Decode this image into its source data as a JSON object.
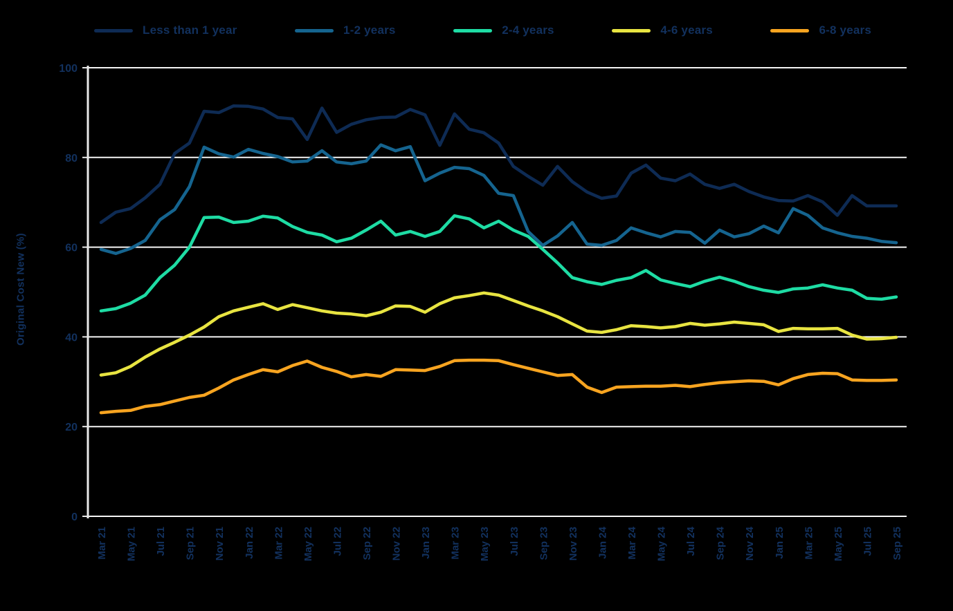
{
  "colors": {
    "background": "#000000",
    "text": "#12315e",
    "gridline": "#f5f5f5",
    "axis": "#e8e8e8"
  },
  "chart_data": {
    "type": "line",
    "title": "",
    "xlabel": "",
    "ylabel": "Original Cost New (%)",
    "ylim": [
      0,
      100
    ],
    "y_ticks": [
      0,
      20,
      40,
      60,
      80,
      100
    ],
    "grid": "horizontal",
    "legend_position": "top",
    "x": [
      "Mar 21",
      "Apr 21",
      "May 21",
      "Jun 21",
      "Jul 21",
      "Aug 21",
      "Sep 21",
      "Oct 21",
      "Nov 21",
      "Dec 21",
      "Jan 22",
      "Feb 22",
      "Mar 22",
      "Apr 22",
      "May 22",
      "Jun 22",
      "Jul 22",
      "Aug 22",
      "Sep 22",
      "Oct 22",
      "Nov 22",
      "Dec 22",
      "Jan 23",
      "Feb 23",
      "Mar 23",
      "Apr 23",
      "May 23",
      "Jun 23",
      "Jul 23",
      "Aug 23",
      "Sep 23",
      "Oct 23",
      "Nov 23",
      "Dec 23",
      "Jan 24",
      "Feb 24",
      "Mar 24",
      "Apr 24",
      "May 24",
      "Jun 24",
      "Jul 24",
      "Aug 24",
      "Sep 24",
      "Oct 24",
      "Nov 24",
      "Dec 24",
      "Jan 25",
      "Feb 25",
      "Mar 25",
      "Apr 25",
      "May 25",
      "Jun 25",
      "Jul 25",
      "Aug 25",
      "Sep 25"
    ],
    "x_tick_labels": [
      "Mar 21",
      "May 21",
      "Jul 21",
      "Sep 21",
      "Nov 21",
      "Jan 22",
      "Mar 22",
      "May 22",
      "Jul 22",
      "Sep 22",
      "Nov 22",
      "Jan 23",
      "Mar 23",
      "May 23",
      "Jul 23",
      "Sep 23",
      "Nov 23",
      "Jan 24",
      "Mar 24",
      "May 24",
      "Jul 24",
      "Sep 24",
      "Nov 24",
      "Jan 25",
      "Mar 25",
      "May 25",
      "Jul 25",
      "Sep 25"
    ],
    "series": [
      {
        "name": "Less than 1 year",
        "color": "#0e2b54",
        "values": [
          65.5,
          67.8,
          68.6,
          71.0,
          74.0,
          80.9,
          83.2,
          90.3,
          90.0,
          91.5,
          91.4,
          90.8,
          88.9,
          88.6,
          84.0,
          91.0,
          85.6,
          87.4,
          88.4,
          88.9,
          89.0,
          90.7,
          89.5,
          82.7,
          89.7,
          86.3,
          85.5,
          83.2,
          78.0,
          75.8,
          73.8,
          78.0,
          74.6,
          72.3,
          70.9,
          71.4,
          76.5,
          78.3,
          75.4,
          74.8,
          76.3,
          74.0,
          73.1,
          74.0,
          72.4,
          71.2,
          70.4,
          70.3,
          71.5,
          70.1,
          67.1,
          71.5,
          69.2,
          69.2,
          69.2
        ]
      },
      {
        "name": "1-2 years",
        "color": "#15648f",
        "values": [
          59.5,
          58.6,
          59.7,
          61.5,
          66.1,
          68.4,
          73.5,
          82.3,
          80.8,
          80.1,
          81.8,
          80.9,
          80.2,
          79.0,
          79.2,
          81.5,
          79.0,
          78.6,
          79.2,
          82.8,
          81.5,
          82.4,
          74.8,
          76.5,
          77.8,
          77.5,
          76.0,
          72.0,
          71.5,
          63.5,
          60.4,
          62.5,
          65.5,
          60.7,
          60.4,
          61.5,
          64.3,
          63.2,
          62.3,
          63.5,
          63.3,
          60.9,
          63.8,
          62.3,
          63.0,
          64.7,
          63.2,
          68.6,
          67.1,
          64.3,
          63.2,
          62.4,
          62.0,
          61.3,
          61.0
        ]
      },
      {
        "name": "2-4 years",
        "color": "#1edca4",
        "values": [
          45.8,
          46.3,
          47.5,
          49.3,
          53.2,
          56.0,
          60.0,
          66.6,
          66.7,
          65.5,
          65.8,
          66.9,
          66.5,
          64.6,
          63.3,
          62.7,
          61.2,
          62.0,
          63.8,
          65.8,
          62.7,
          63.5,
          62.4,
          63.5,
          67.0,
          66.3,
          64.3,
          65.8,
          63.8,
          62.4,
          59.5,
          56.5,
          53.2,
          52.3,
          51.7,
          52.6,
          53.2,
          54.8,
          52.7,
          51.9,
          51.2,
          52.4,
          53.3,
          52.4,
          51.2,
          50.4,
          49.9,
          50.7,
          50.9,
          51.6,
          50.9,
          50.4,
          48.6,
          48.4,
          48.9
        ]
      },
      {
        "name": "4-6 years",
        "color": "#e8e441",
        "values": [
          31.5,
          32.0,
          33.4,
          35.5,
          37.3,
          38.8,
          40.4,
          42.2,
          44.5,
          45.8,
          46.6,
          47.4,
          46.1,
          47.2,
          46.5,
          45.8,
          45.3,
          45.1,
          44.7,
          45.5,
          46.9,
          46.8,
          45.5,
          47.4,
          48.7,
          49.2,
          49.8,
          49.3,
          48.1,
          46.9,
          45.8,
          44.5,
          42.9,
          41.3,
          41.0,
          41.6,
          42.5,
          42.3,
          42.0,
          42.3,
          43.0,
          42.6,
          42.9,
          43.3,
          43.0,
          42.7,
          41.2,
          41.9,
          41.8,
          41.8,
          41.9,
          40.4,
          39.5,
          39.6,
          39.9
        ]
      },
      {
        "name": "6-8 years",
        "color": "#f7a420",
        "values": [
          23.1,
          23.4,
          23.6,
          24.5,
          24.9,
          25.7,
          26.5,
          27.0,
          28.6,
          30.4,
          31.6,
          32.7,
          32.2,
          33.6,
          34.6,
          33.2,
          32.3,
          31.1,
          31.6,
          31.2,
          32.7,
          32.6,
          32.5,
          33.4,
          34.7,
          34.8,
          34.8,
          34.7,
          33.8,
          33.0,
          32.2,
          31.4,
          31.6,
          28.8,
          27.6,
          28.8,
          28.9,
          29.0,
          29.0,
          29.2,
          28.9,
          29.4,
          29.8,
          30.0,
          30.2,
          30.1,
          29.3,
          30.7,
          31.6,
          31.9,
          31.8,
          30.4,
          30.3,
          30.3,
          30.4
        ]
      }
    ]
  }
}
